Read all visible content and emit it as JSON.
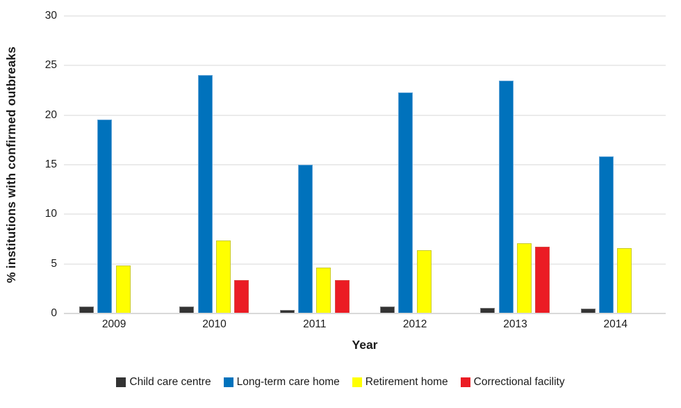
{
  "chart_data": {
    "type": "bar",
    "title": "",
    "xlabel": "Year",
    "ylabel": "% institutions with confirmed outbreaks",
    "categories": [
      "2009",
      "2010",
      "2011",
      "2012",
      "2013",
      "2014"
    ],
    "series": [
      {
        "name": "Child care centre",
        "color": "#333333",
        "values": [
          0.6,
          0.6,
          0.25,
          0.6,
          0.5,
          0.45
        ]
      },
      {
        "name": "Long-term care home",
        "color": "#0072BC",
        "values": [
          19.5,
          24.0,
          15.0,
          22.3,
          23.5,
          15.8
        ]
      },
      {
        "name": "Retirement home",
        "color": "#FFFF00",
        "values": [
          4.8,
          7.3,
          4.6,
          6.3,
          7.0,
          6.5
        ]
      },
      {
        "name": "Correctional facility",
        "color": "#EB1C24",
        "values": [
          0,
          3.3,
          3.3,
          0,
          6.7,
          0
        ]
      }
    ],
    "ylim": [
      0,
      30
    ],
    "yticks": [
      0,
      5,
      10,
      15,
      20,
      25,
      30
    ],
    "grid": true,
    "legend_position": "bottom",
    "gridline_color": "#ebebeb",
    "axis_line_color": "#d9d9d9"
  }
}
